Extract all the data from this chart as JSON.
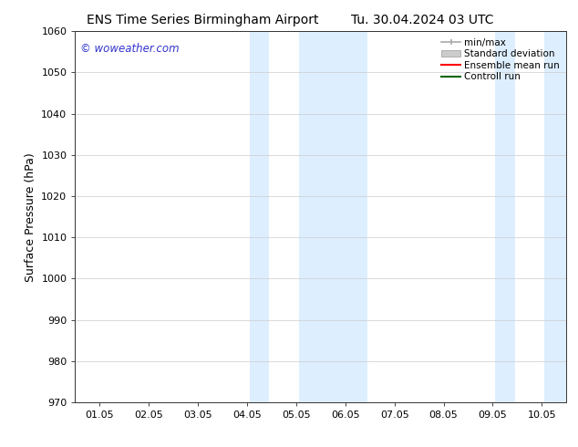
{
  "title_left": "ENS Time Series Birmingham Airport",
  "title_right": "Tu. 30.04.2024 03 UTC",
  "ylabel": "Surface Pressure (hPa)",
  "ylim": [
    970,
    1060
  ],
  "yticks": [
    970,
    980,
    990,
    1000,
    1010,
    1020,
    1030,
    1040,
    1050,
    1060
  ],
  "xtick_labels": [
    "01.05",
    "02.05",
    "03.05",
    "04.05",
    "05.05",
    "06.05",
    "07.05",
    "08.05",
    "09.05",
    "10.05"
  ],
  "watermark": "© woweather.com",
  "watermark_color": "#3333cc",
  "background_color": "#ffffff",
  "shaded_regions": [
    {
      "xstart": 3.05,
      "xend": 3.45,
      "color": "#ddeeff"
    },
    {
      "xstart": 4.05,
      "xend": 5.45,
      "color": "#ddeeff"
    },
    {
      "xstart": 8.05,
      "xend": 8.45,
      "color": "#ddeeff"
    },
    {
      "xstart": 9.05,
      "xend": 9.95,
      "color": "#ddeeff"
    }
  ],
  "legend_entries": [
    {
      "label": "min/max",
      "color": "#aaaaaa",
      "style": "line_with_caps"
    },
    {
      "label": "Standard deviation",
      "color": "#cccccc",
      "style": "filled_bar"
    },
    {
      "label": "Ensemble mean run",
      "color": "#ff0000",
      "style": "line"
    },
    {
      "label": "Controll run",
      "color": "#006600",
      "style": "line"
    }
  ],
  "grid_color": "#cccccc",
  "title_fontsize": 10,
  "tick_fontsize": 8,
  "ylabel_fontsize": 9,
  "legend_fontsize": 7.5
}
